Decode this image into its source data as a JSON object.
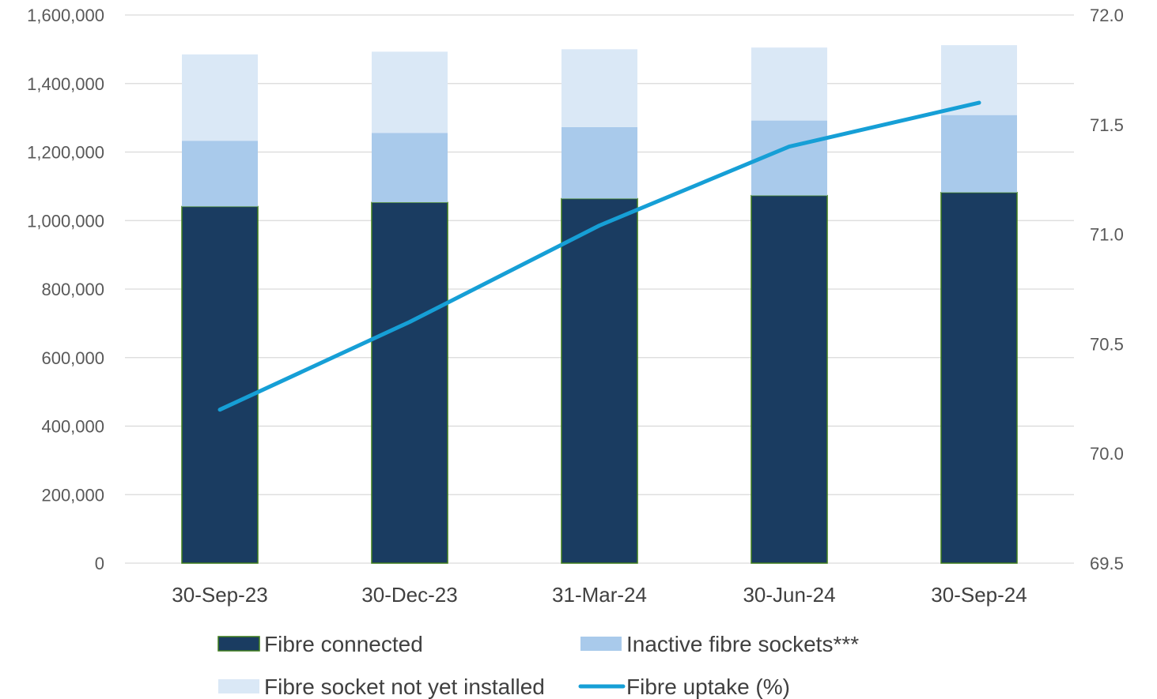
{
  "chart_data": {
    "type": "bar",
    "stacked": true,
    "categories": [
      "30-Sep-23",
      "30-Dec-23",
      "31-Mar-24",
      "30-Jun-24",
      "30-Sep-24"
    ],
    "series": [
      {
        "name": "Fibre connected",
        "type": "bar",
        "axis": "left",
        "color": "#1a3c61",
        "border": "#3e7d1a",
        "values": [
          1041000,
          1053000,
          1064000,
          1073000,
          1082000
        ]
      },
      {
        "name": "Inactive fibre sockets***",
        "type": "bar",
        "axis": "left",
        "color": "#a9caeb",
        "values": [
          192000,
          203000,
          209000,
          219000,
          226000
        ]
      },
      {
        "name": "Fibre socket not yet installed",
        "type": "bar",
        "axis": "left",
        "color": "#dae8f6",
        "values": [
          252000,
          237000,
          227000,
          213000,
          204000
        ]
      },
      {
        "name": "Fibre uptake (%)",
        "type": "line",
        "axis": "right",
        "color": "#169fd6",
        "values": [
          70.2,
          70.6,
          71.04,
          71.4,
          71.6
        ]
      }
    ],
    "ylim": [
      0,
      1600000
    ],
    "yticks": [
      "0",
      "200,000",
      "400,000",
      "600,000",
      "800,000",
      "1,000,000",
      "1,200,000",
      "1,400,000",
      "1,600,000"
    ],
    "y2lim": [
      69.5,
      72.0
    ],
    "y2ticks": [
      "69.5",
      "70.0",
      "70.5",
      "71.0",
      "71.5",
      "72.0"
    ],
    "grid": true,
    "legend_position": "bottom"
  }
}
